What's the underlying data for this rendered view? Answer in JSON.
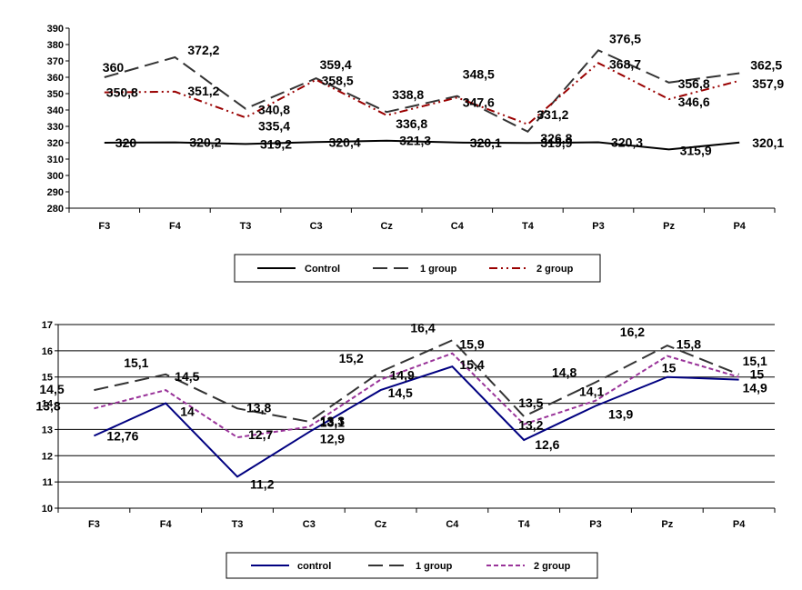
{
  "chart_data": [
    {
      "type": "line",
      "categories": [
        "F3",
        "F4",
        "T3",
        "C3",
        "Cz",
        "C4",
        "T4",
        "P3",
        "Pz",
        "P4"
      ],
      "ylim": [
        280,
        390
      ],
      "yticks": [
        280,
        290,
        300,
        310,
        320,
        330,
        340,
        350,
        360,
        370,
        380,
        390
      ],
      "grid": false,
      "legend_position": "bottom",
      "series": [
        {
          "name": "Control",
          "style": "solid",
          "color": "#000000",
          "values": [
            320,
            320.2,
            319.2,
            320.4,
            321.3,
            320.1,
            319.9,
            320.3,
            315.9,
            320.1
          ],
          "labels": [
            "320",
            "320,2",
            "319,2",
            "320,4",
            "321,3",
            "320,1",
            "319,9",
            "320,3",
            "315,9",
            "320,1"
          ]
        },
        {
          "name": "1 group",
          "style": "dash",
          "color": "#333333",
          "values": [
            360,
            372.2,
            340.8,
            359.4,
            338.8,
            348.5,
            326.8,
            376.5,
            356.8,
            362.5
          ],
          "labels": [
            "360",
            "372,2",
            "340,8",
            "359,4",
            "338,8",
            "348,5",
            "326,8",
            "376,5",
            "356,8",
            "362,5"
          ]
        },
        {
          "name": "2 group",
          "style": "dashdotdot",
          "color": "#990000",
          "values": [
            350.8,
            351.2,
            335.4,
            358.5,
            336.8,
            347.6,
            331.2,
            368.7,
            346.6,
            357.9
          ],
          "labels": [
            "350,8",
            "351,2",
            "335,4",
            "358,5",
            "336,8",
            "347,6",
            "331,2",
            "368,7",
            "346,6",
            "357,9"
          ]
        }
      ]
    },
    {
      "type": "line",
      "categories": [
        "F3",
        "F4",
        "T3",
        "C3",
        "Cz",
        "C4",
        "T4",
        "P3",
        "Pz",
        "P4"
      ],
      "ylim": [
        10,
        17
      ],
      "yticks": [
        10,
        11,
        12,
        13,
        14,
        15,
        16,
        17
      ],
      "grid": true,
      "legend_position": "bottom",
      "series": [
        {
          "name": "control",
          "style": "solid",
          "color": "#000080",
          "values": [
            12.76,
            14,
            11.2,
            12.9,
            14.5,
            15.4,
            12.6,
            13.9,
            15,
            14.9
          ],
          "labels": [
            "12,76",
            "14",
            "11,2",
            "12,9",
            "14,5",
            "15,4",
            "12,6",
            "13,9",
            "15",
            "14,9"
          ]
        },
        {
          "name": "1 group",
          "style": "dash",
          "color": "#333333",
          "values": [
            14.5,
            15.1,
            13.8,
            13.3,
            15.2,
            16.4,
            13.5,
            14.8,
            16.2,
            15.1
          ],
          "labels": [
            "14,5",
            "15,1",
            "13,8",
            "13,3",
            "15,2",
            "16,4",
            "13,5",
            "14,8",
            "16,2",
            "15,1"
          ]
        },
        {
          "name": "2 group",
          "style": "shortdash",
          "color": "#993399",
          "values": [
            13.8,
            14.5,
            12.7,
            13.1,
            14.9,
            15.9,
            13.2,
            14.1,
            15.8,
            15
          ],
          "labels": [
            "13,8",
            "14,5",
            "12,7",
            "13,1",
            "14,9",
            "15,9",
            "13,2",
            "14,1",
            "15,8",
            "15"
          ]
        }
      ]
    }
  ]
}
